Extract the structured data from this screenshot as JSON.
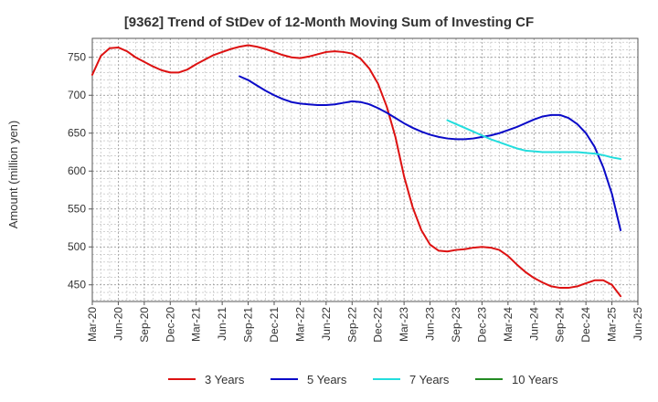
{
  "chart_data": {
    "type": "line",
    "title": "[9362]  Trend of StDev of 12-Month Moving Sum of Investing CF",
    "ylabel": "Amount (million yen)",
    "xlabel": "",
    "ylim": [
      428,
      775
    ],
    "yticks": [
      450,
      500,
      550,
      600,
      650,
      700,
      750
    ],
    "xticks": [
      "Mar-20",
      "Jun-20",
      "Sep-20",
      "Dec-20",
      "Mar-21",
      "Jun-21",
      "Sep-21",
      "Dec-21",
      "Mar-22",
      "Jun-22",
      "Sep-22",
      "Dec-22",
      "Mar-23",
      "Jun-23",
      "Sep-23",
      "Dec-23",
      "Mar-24",
      "Jun-24",
      "Sep-24",
      "Dec-24",
      "Mar-25",
      "Jun-25"
    ],
    "grid": true,
    "legend_position": "bottom",
    "series": [
      {
        "name": "3 Years",
        "color": "#dd1111",
        "points": [
          [
            "Mar-20",
            727
          ],
          [
            "Apr-20",
            752
          ],
          [
            "May-20",
            762
          ],
          [
            "Jun-20",
            763
          ],
          [
            "Jul-20",
            758
          ],
          [
            "Aug-20",
            750
          ],
          [
            "Sep-20",
            744
          ],
          [
            "Oct-20",
            738
          ],
          [
            "Nov-20",
            733
          ],
          [
            "Dec-20",
            730
          ],
          [
            "Jan-21",
            730
          ],
          [
            "Feb-21",
            734
          ],
          [
            "Mar-21",
            741
          ],
          [
            "Apr-21",
            747
          ],
          [
            "May-21",
            753
          ],
          [
            "Jun-21",
            757
          ],
          [
            "Jul-21",
            761
          ],
          [
            "Aug-21",
            764
          ],
          [
            "Sep-21",
            766
          ],
          [
            "Oct-21",
            764
          ],
          [
            "Nov-21",
            761
          ],
          [
            "Dec-21",
            757
          ],
          [
            "Jan-22",
            753
          ],
          [
            "Feb-22",
            750
          ],
          [
            "Mar-22",
            749
          ],
          [
            "Apr-22",
            751
          ],
          [
            "May-22",
            754
          ],
          [
            "Jun-22",
            757
          ],
          [
            "Jul-22",
            758
          ],
          [
            "Aug-22",
            757
          ],
          [
            "Sep-22",
            755
          ],
          [
            "Oct-22",
            748
          ],
          [
            "Nov-22",
            735
          ],
          [
            "Dec-22",
            715
          ],
          [
            "Jan-23",
            685
          ],
          [
            "Feb-23",
            645
          ],
          [
            "Mar-23",
            593
          ],
          [
            "Apr-23",
            552
          ],
          [
            "May-23",
            522
          ],
          [
            "Jun-23",
            503
          ],
          [
            "Jul-23",
            495
          ],
          [
            "Aug-23",
            494
          ],
          [
            "Sep-23",
            496
          ],
          [
            "Oct-23",
            497
          ],
          [
            "Nov-23",
            499
          ],
          [
            "Dec-23",
            500
          ],
          [
            "Jan-24",
            499
          ],
          [
            "Feb-24",
            496
          ],
          [
            "Mar-24",
            488
          ],
          [
            "Apr-24",
            477
          ],
          [
            "May-24",
            467
          ],
          [
            "Jun-24",
            459
          ],
          [
            "Jul-24",
            453
          ],
          [
            "Aug-24",
            448
          ],
          [
            "Sep-24",
            446
          ],
          [
            "Oct-24",
            446
          ],
          [
            "Nov-24",
            448
          ],
          [
            "Dec-24",
            452
          ],
          [
            "Jan-25",
            456
          ],
          [
            "Feb-25",
            456
          ],
          [
            "Mar-25",
            450
          ],
          [
            "Apr-25",
            435
          ]
        ]
      },
      {
        "name": "5 Years",
        "color": "#0a0ac8",
        "points": [
          [
            "Aug-21",
            725
          ],
          [
            "Sep-21",
            720
          ],
          [
            "Oct-21",
            713
          ],
          [
            "Nov-21",
            706
          ],
          [
            "Dec-21",
            700
          ],
          [
            "Jan-22",
            695
          ],
          [
            "Feb-22",
            691
          ],
          [
            "Mar-22",
            689
          ],
          [
            "Apr-22",
            688
          ],
          [
            "May-22",
            687
          ],
          [
            "Jun-22",
            687
          ],
          [
            "Jul-22",
            688
          ],
          [
            "Aug-22",
            690
          ],
          [
            "Sep-22",
            692
          ],
          [
            "Oct-22",
            691
          ],
          [
            "Nov-22",
            688
          ],
          [
            "Dec-22",
            683
          ],
          [
            "Jan-23",
            677
          ],
          [
            "Feb-23",
            670
          ],
          [
            "Mar-23",
            663
          ],
          [
            "Apr-23",
            657
          ],
          [
            "May-23",
            652
          ],
          [
            "Jun-23",
            648
          ],
          [
            "Jul-23",
            645
          ],
          [
            "Aug-23",
            643
          ],
          [
            "Sep-23",
            642
          ],
          [
            "Oct-23",
            642
          ],
          [
            "Nov-23",
            643
          ],
          [
            "Dec-23",
            645
          ],
          [
            "Jan-24",
            647
          ],
          [
            "Feb-24",
            650
          ],
          [
            "Mar-24",
            654
          ],
          [
            "Apr-24",
            658
          ],
          [
            "May-24",
            663
          ],
          [
            "Jun-24",
            668
          ],
          [
            "Jul-24",
            672
          ],
          [
            "Aug-24",
            674
          ],
          [
            "Sep-24",
            674
          ],
          [
            "Oct-24",
            670
          ],
          [
            "Nov-24",
            662
          ],
          [
            "Dec-24",
            650
          ],
          [
            "Jan-25",
            632
          ],
          [
            "Feb-25",
            605
          ],
          [
            "Mar-25",
            570
          ],
          [
            "Apr-25",
            522
          ]
        ]
      },
      {
        "name": "7 Years",
        "color": "#22dddd",
        "points": [
          [
            "Aug-23",
            667
          ],
          [
            "Sep-23",
            662
          ],
          [
            "Oct-23",
            657
          ],
          [
            "Nov-23",
            652
          ],
          [
            "Dec-23",
            647
          ],
          [
            "Jan-24",
            642
          ],
          [
            "Feb-24",
            638
          ],
          [
            "Mar-24",
            634
          ],
          [
            "Apr-24",
            630
          ],
          [
            "May-24",
            627
          ],
          [
            "Jun-24",
            626
          ],
          [
            "Jul-24",
            625
          ],
          [
            "Aug-24",
            625
          ],
          [
            "Sep-24",
            625
          ],
          [
            "Oct-24",
            625
          ],
          [
            "Nov-24",
            625
          ],
          [
            "Dec-24",
            624
          ],
          [
            "Jan-25",
            623
          ],
          [
            "Feb-25",
            621
          ],
          [
            "Mar-25",
            618
          ],
          [
            "Apr-25",
            616
          ]
        ]
      },
      {
        "name": "10 Years",
        "color": "#228b22",
        "points": []
      }
    ]
  }
}
